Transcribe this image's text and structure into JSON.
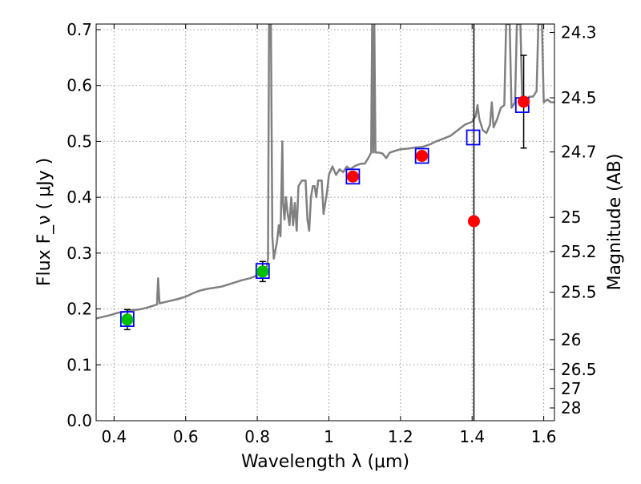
{
  "chart_data": {
    "type": "scatter",
    "xlabel": "Wavelength  λ (μm)",
    "ylabel": "Flux  F_ν  ( μJy )",
    "y2label": "Magnitude (AB)",
    "xlim": [
      0.35,
      1.63
    ],
    "ylim": [
      0.0,
      0.71
    ],
    "grid": true,
    "x_ticks": [
      0.4,
      0.6,
      0.8,
      1.0,
      1.2,
      1.4,
      1.6
    ],
    "x_tick_labels": [
      "0.4",
      "0.6",
      "0.8",
      "1",
      "1.2",
      "1.4",
      "1.6"
    ],
    "y_ticks": [
      0.0,
      0.1,
      0.2,
      0.3,
      0.4,
      0.5,
      0.6,
      0.7
    ],
    "y_tick_labels": [
      "0.0",
      "0.1",
      "0.2",
      "0.3",
      "0.4",
      "0.5",
      "0.6",
      "0.7"
    ],
    "mag_ticks": [
      {
        "label": "24.3",
        "flux": 0.695
      },
      {
        "label": "24.5",
        "flux": 0.578
      },
      {
        "label": "24.7",
        "flux": 0.481
      },
      {
        "label": "25",
        "flux": 0.364
      },
      {
        "label": "25.2",
        "flux": 0.303
      },
      {
        "label": "25.5",
        "flux": 0.23
      },
      {
        "label": "26",
        "flux": 0.145
      },
      {
        "label": "26.5",
        "flux": 0.0915
      },
      {
        "label": "27",
        "flux": 0.0577
      },
      {
        "label": "28",
        "flux": 0.0229
      }
    ],
    "vertical_line_x": 1.405,
    "model_spectrum": [
      [
        0.35,
        0.183
      ],
      [
        0.37,
        0.186
      ],
      [
        0.39,
        0.189
      ],
      [
        0.41,
        0.193
      ],
      [
        0.43,
        0.195
      ],
      [
        0.45,
        0.198
      ],
      [
        0.47,
        0.199
      ],
      [
        0.49,
        0.202
      ],
      [
        0.51,
        0.206
      ],
      [
        0.52,
        0.208
      ],
      [
        0.523,
        0.255
      ],
      [
        0.527,
        0.21
      ],
      [
        0.54,
        0.212
      ],
      [
        0.56,
        0.215
      ],
      [
        0.58,
        0.218
      ],
      [
        0.6,
        0.222
      ],
      [
        0.62,
        0.228
      ],
      [
        0.64,
        0.233
      ],
      [
        0.66,
        0.236
      ],
      [
        0.68,
        0.238
      ],
      [
        0.7,
        0.24
      ],
      [
        0.72,
        0.244
      ],
      [
        0.74,
        0.248
      ],
      [
        0.76,
        0.252
      ],
      [
        0.78,
        0.255
      ],
      [
        0.8,
        0.26
      ],
      [
        0.82,
        0.265
      ],
      [
        0.825,
        0.27
      ],
      [
        0.83,
        0.29
      ],
      [
        0.833,
        0.71
      ],
      [
        0.838,
        0.71
      ],
      [
        0.842,
        0.33
      ],
      [
        0.846,
        0.29
      ],
      [
        0.855,
        0.32
      ],
      [
        0.86,
        0.35
      ],
      [
        0.865,
        0.33
      ],
      [
        0.87,
        0.5
      ],
      [
        0.872,
        0.39
      ],
      [
        0.876,
        0.36
      ],
      [
        0.88,
        0.4
      ],
      [
        0.885,
        0.37
      ],
      [
        0.89,
        0.35
      ],
      [
        0.895,
        0.4
      ],
      [
        0.9,
        0.35
      ],
      [
        0.905,
        0.39
      ],
      [
        0.91,
        0.34
      ],
      [
        0.915,
        0.42
      ],
      [
        0.925,
        0.43
      ],
      [
        0.935,
        0.43
      ],
      [
        0.94,
        0.36
      ],
      [
        0.945,
        0.34
      ],
      [
        0.95,
        0.4
      ],
      [
        0.955,
        0.42
      ],
      [
        0.96,
        0.42
      ],
      [
        0.965,
        0.4
      ],
      [
        0.97,
        0.43
      ],
      [
        0.98,
        0.43
      ],
      [
        0.985,
        0.37
      ],
      [
        0.99,
        0.39
      ],
      [
        0.995,
        0.41
      ],
      [
        1.0,
        0.44
      ],
      [
        1.01,
        0.455
      ],
      [
        1.02,
        0.44
      ],
      [
        1.03,
        0.45
      ],
      [
        1.04,
        0.445
      ],
      [
        1.05,
        0.455
      ],
      [
        1.06,
        0.45
      ],
      [
        1.07,
        0.455
      ],
      [
        1.08,
        0.458
      ],
      [
        1.09,
        0.46
      ],
      [
        1.1,
        0.46
      ],
      [
        1.11,
        0.47
      ],
      [
        1.118,
        0.48
      ],
      [
        1.121,
        0.71
      ],
      [
        1.124,
        0.48
      ],
      [
        1.127,
        0.71
      ],
      [
        1.13,
        0.48
      ],
      [
        1.14,
        0.48
      ],
      [
        1.15,
        0.478
      ],
      [
        1.16,
        0.47
      ],
      [
        1.17,
        0.48
      ],
      [
        1.18,
        0.482
      ],
      [
        1.2,
        0.486
      ],
      [
        1.22,
        0.487
      ],
      [
        1.24,
        0.489
      ],
      [
        1.26,
        0.49
      ],
      [
        1.28,
        0.494
      ],
      [
        1.3,
        0.5
      ],
      [
        1.32,
        0.505
      ],
      [
        1.34,
        0.51
      ],
      [
        1.36,
        0.52
      ],
      [
        1.38,
        0.53
      ],
      [
        1.4,
        0.535
      ],
      [
        1.41,
        0.545
      ],
      [
        1.415,
        0.565
      ],
      [
        1.42,
        0.54
      ],
      [
        1.43,
        0.52
      ],
      [
        1.44,
        0.515
      ],
      [
        1.45,
        0.53
      ],
      [
        1.455,
        0.57
      ],
      [
        1.46,
        0.525
      ],
      [
        1.47,
        0.54
      ],
      [
        1.48,
        0.56
      ],
      [
        1.49,
        0.565
      ],
      [
        1.495,
        0.71
      ],
      [
        1.505,
        0.71
      ],
      [
        1.51,
        0.56
      ],
      [
        1.52,
        0.57
      ],
      [
        1.525,
        0.71
      ],
      [
        1.535,
        0.71
      ],
      [
        1.54,
        0.57
      ],
      [
        1.55,
        0.575
      ],
      [
        1.56,
        0.58
      ],
      [
        1.57,
        0.58
      ],
      [
        1.58,
        0.59
      ],
      [
        1.585,
        0.71
      ],
      [
        1.595,
        0.71
      ],
      [
        1.6,
        0.57
      ],
      [
        1.61,
        0.575
      ],
      [
        1.62,
        0.57
      ],
      [
        1.63,
        0.57
      ]
    ],
    "model_photometry": [
      {
        "x": 0.437,
        "y": 0.182
      },
      {
        "x": 0.815,
        "y": 0.268
      },
      {
        "x": 1.067,
        "y": 0.437
      },
      {
        "x": 1.26,
        "y": 0.474
      },
      {
        "x": 1.403,
        "y": 0.507
      },
      {
        "x": 1.54,
        "y": 0.565
      }
    ],
    "detections_green": [
      {
        "x": 0.437,
        "y": 0.181,
        "yerr": 0.018
      },
      {
        "x": 0.815,
        "y": 0.267,
        "yerr": 0.018
      }
    ],
    "detections_red": [
      {
        "x": 1.067,
        "y": 0.437
      },
      {
        "x": 1.26,
        "y": 0.474
      },
      {
        "x": 1.405,
        "y": 0.357
      },
      {
        "x": 1.544,
        "y": 0.571,
        "yerr": 0.083
      }
    ],
    "colors": {
      "spectrum": "#808080",
      "model_box": "#0000ff",
      "green_marker": "#00bf00",
      "red_marker": "#ff0000",
      "errorbar": "#000000",
      "grid": "#999999"
    }
  }
}
